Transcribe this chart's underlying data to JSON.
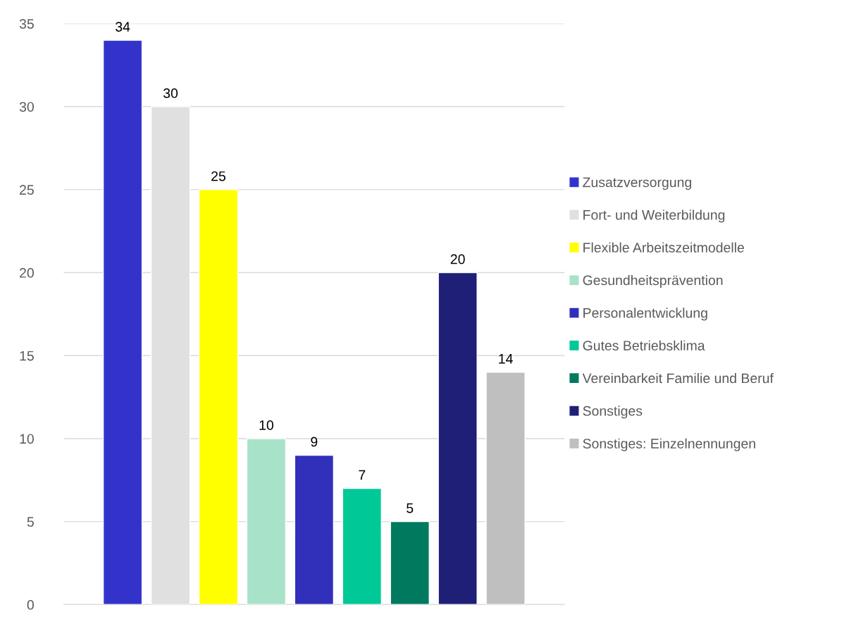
{
  "chart_data": {
    "type": "bar",
    "categories": [
      null
    ],
    "series": [
      {
        "name": "Zusatzversorgung",
        "color": "#3333cc",
        "values": [
          34
        ]
      },
      {
        "name": "Fort- und Weiterbildung",
        "color": "#e0e0e0",
        "values": [
          30
        ]
      },
      {
        "name": "Flexible Arbeitszeitmodelle",
        "color": "#ffff00",
        "values": [
          25
        ]
      },
      {
        "name": "Gesundheitsprävention",
        "color": "#a8e2c8",
        "values": [
          10
        ]
      },
      {
        "name": "Personalentwicklung",
        "color": "#3030bb",
        "values": [
          9
        ]
      },
      {
        "name": "Gutes Betriebsklima",
        "color": "#00c896",
        "values": [
          7
        ]
      },
      {
        "name": "Vereinbarkeit Familie und Beruf",
        "color": "#007a5e",
        "values": [
          5
        ]
      },
      {
        "name": "Sonstiges",
        "color": "#1f1f78",
        "values": [
          20
        ]
      },
      {
        "name": "Sonstiges: Einzelnennungen",
        "color": "#bfbfbf",
        "values": [
          14
        ]
      }
    ],
    "ylim": [
      0,
      35
    ],
    "yticks": [
      0,
      5,
      10,
      15,
      20,
      25,
      30,
      35
    ],
    "grid": "y",
    "legend": "right",
    "data_labels": true
  }
}
